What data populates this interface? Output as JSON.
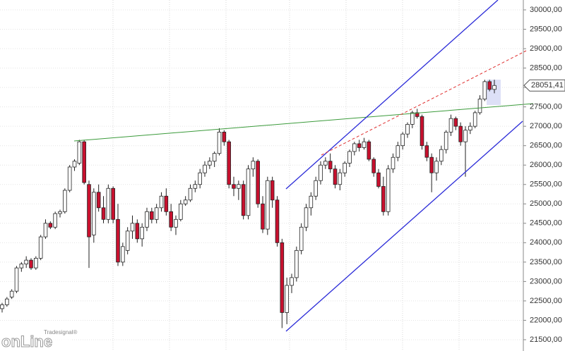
{
  "chart_data": {
    "type": "candlestick",
    "ohlc": [
      [
        22300,
        22450,
        22200,
        22400
      ],
      [
        22400,
        22600,
        22350,
        22550
      ],
      [
        22600,
        22800,
        22550,
        22750
      ],
      [
        22750,
        23400,
        22700,
        23350
      ],
      [
        23350,
        23500,
        23250,
        23450
      ],
      [
        23450,
        23650,
        23350,
        23550
      ],
      [
        23550,
        23600,
        23300,
        23350
      ],
      [
        23350,
        23650,
        23300,
        23600
      ],
      [
        23600,
        24200,
        23550,
        24150
      ],
      [
        24150,
        24600,
        24100,
        24500
      ],
      [
        24500,
        24550,
        24350,
        24400
      ],
      [
        24400,
        24800,
        24350,
        24750
      ],
      [
        24750,
        24850,
        24650,
        24800
      ],
      [
        24800,
        25400,
        24750,
        25350
      ],
      [
        25350,
        26000,
        25300,
        25950
      ],
      [
        25950,
        26150,
        25850,
        26100
      ],
      [
        26050,
        26650,
        26000,
        26600
      ],
      [
        26600,
        26650,
        25500,
        25550
      ],
      [
        25500,
        25600,
        23350,
        24150
      ],
      [
        24200,
        25400,
        24000,
        25300
      ],
      [
        25300,
        25500,
        24800,
        24900
      ],
      [
        24900,
        25200,
        24500,
        24600
      ],
      [
        24600,
        25500,
        24500,
        25400
      ],
      [
        25400,
        25450,
        24500,
        24600
      ],
      [
        24600,
        25000,
        23400,
        23500
      ],
      [
        23500,
        24000,
        23400,
        23900
      ],
      [
        23800,
        24400,
        23700,
        24300
      ],
      [
        24300,
        24700,
        24100,
        24500
      ],
      [
        24500,
        24600,
        24000,
        24100
      ],
      [
        24100,
        24500,
        23900,
        24400
      ],
      [
        24400,
        24900,
        24300,
        24800
      ],
      [
        24800,
        24900,
        24500,
        24600
      ],
      [
        24600,
        25000,
        24500,
        24900
      ],
      [
        24900,
        25300,
        24800,
        25200
      ],
      [
        25200,
        25400,
        24700,
        24800
      ],
      [
        24800,
        25000,
        24300,
        24400
      ],
      [
        24400,
        24700,
        24200,
        24600
      ],
      [
        24600,
        25100,
        24550,
        25000
      ],
      [
        25000,
        25200,
        24950,
        25100
      ],
      [
        25100,
        25500,
        25050,
        25400
      ],
      [
        25400,
        25600,
        25300,
        25500
      ],
      [
        25500,
        25900,
        25400,
        25800
      ],
      [
        25800,
        26100,
        25700,
        26000
      ],
      [
        26000,
        26200,
        25900,
        26100
      ],
      [
        26100,
        26350,
        25950,
        26300
      ],
      [
        26300,
        26950,
        26250,
        26850
      ],
      [
        26850,
        26900,
        26500,
        26600
      ],
      [
        26600,
        26650,
        25400,
        25500
      ],
      [
        25500,
        25700,
        25200,
        25400
      ],
      [
        25400,
        25600,
        25100,
        25500
      ],
      [
        25500,
        25600,
        24600,
        24700
      ],
      [
        24700,
        26000,
        24600,
        25900
      ],
      [
        25900,
        26200,
        25700,
        26100
      ],
      [
        26100,
        26150,
        24900,
        25000
      ],
      [
        25000,
        25200,
        24250,
        24350
      ],
      [
        24350,
        25700,
        24200,
        25600
      ],
      [
        25600,
        25700,
        24900,
        25100
      ],
      [
        25100,
        25200,
        23900,
        24000
      ],
      [
        24000,
        24100,
        21800,
        22200
      ],
      [
        22200,
        23100,
        21900,
        22900
      ],
      [
        22900,
        23200,
        22700,
        23100
      ],
      [
        23100,
        23900,
        23000,
        23800
      ],
      [
        23800,
        24500,
        23700,
        24400
      ],
      [
        24400,
        25000,
        24300,
        24900
      ],
      [
        24900,
        25300,
        24700,
        25200
      ],
      [
        25200,
        25700,
        25100,
        25600
      ],
      [
        25600,
        26100,
        25500,
        26000
      ],
      [
        26000,
        26200,
        25900,
        26100
      ],
      [
        26100,
        26300,
        25800,
        25900
      ],
      [
        25900,
        26000,
        25400,
        25500
      ],
      [
        25500,
        25900,
        25350,
        25800
      ],
      [
        25800,
        26100,
        25700,
        26050
      ],
      [
        26050,
        26400,
        25950,
        26350
      ],
      [
        26350,
        26600,
        26250,
        26550
      ],
      [
        26550,
        26650,
        26350,
        26450
      ],
      [
        26450,
        26700,
        26400,
        26600
      ],
      [
        26600,
        26650,
        26100,
        26150
      ],
      [
        26150,
        26200,
        25700,
        25800
      ],
      [
        25800,
        25900,
        25400,
        25450
      ],
      [
        25450,
        25700,
        24700,
        24800
      ],
      [
        24800,
        26000,
        24700,
        25900
      ],
      [
        25900,
        26300,
        25800,
        26200
      ],
      [
        26200,
        26600,
        26100,
        26500
      ],
      [
        26500,
        26850,
        26400,
        26800
      ],
      [
        26800,
        27100,
        26700,
        27050
      ],
      [
        27050,
        27400,
        26950,
        27350
      ],
      [
        27350,
        27450,
        27200,
        27250
      ],
      [
        27250,
        27300,
        26400,
        26500
      ],
      [
        26500,
        26600,
        26100,
        26200
      ],
      [
        26200,
        26300,
        25300,
        25800
      ],
      [
        25800,
        26200,
        25600,
        26100
      ],
      [
        26100,
        26500,
        26000,
        26400
      ],
      [
        26400,
        26900,
        26300,
        26850
      ],
      [
        26850,
        27300,
        26750,
        27200
      ],
      [
        27200,
        27250,
        26900,
        27000
      ],
      [
        27000,
        27100,
        26500,
        26600
      ],
      [
        26600,
        27000,
        25700,
        26900
      ],
      [
        26900,
        27100,
        26800,
        27000
      ],
      [
        27000,
        27400,
        26950,
        27350
      ],
      [
        27350,
        27800,
        27300,
        27700
      ],
      [
        27700,
        28200,
        27650,
        28150
      ],
      [
        28150,
        28200,
        27900,
        27950
      ],
      [
        27950,
        28200,
        27850,
        28051.41
      ]
    ],
    "up_color": "#ffffff",
    "down_color": "#c8102e",
    "outline_color": "#222222",
    "ylim": [
      21209,
      30254
    ],
    "yticks": [
      {
        "value": 21500,
        "label": "21500,00"
      },
      {
        "value": 22000,
        "label": "22000,00"
      },
      {
        "value": 22500,
        "label": "22500,00"
      },
      {
        "value": 23000,
        "label": "23000,00"
      },
      {
        "value": 23500,
        "label": "23500,00"
      },
      {
        "value": 24000,
        "label": "24000,00"
      },
      {
        "value": 24500,
        "label": "24500,00"
      },
      {
        "value": 25000,
        "label": "25000,00"
      },
      {
        "value": 25500,
        "label": "25500,00"
      },
      {
        "value": 26000,
        "label": "26000,00"
      },
      {
        "value": 26500,
        "label": "26500,00"
      },
      {
        "value": 27000,
        "label": "27000,00"
      },
      {
        "value": 27500,
        "label": "27500,00"
      },
      {
        "value": 28000,
        "label": "28000,00"
      },
      {
        "value": 28500,
        "label": "28500,00"
      },
      {
        "value": 29000,
        "label": "29000,00"
      },
      {
        "value": 29500,
        "label": "29500,00"
      },
      {
        "value": 30000,
        "label": "30000,00"
      }
    ],
    "last": {
      "value": 28051.41,
      "label": "28051,41"
    },
    "grid": true
  },
  "logo": {
    "brand": "Tradesignal®",
    "name": "onLine"
  }
}
